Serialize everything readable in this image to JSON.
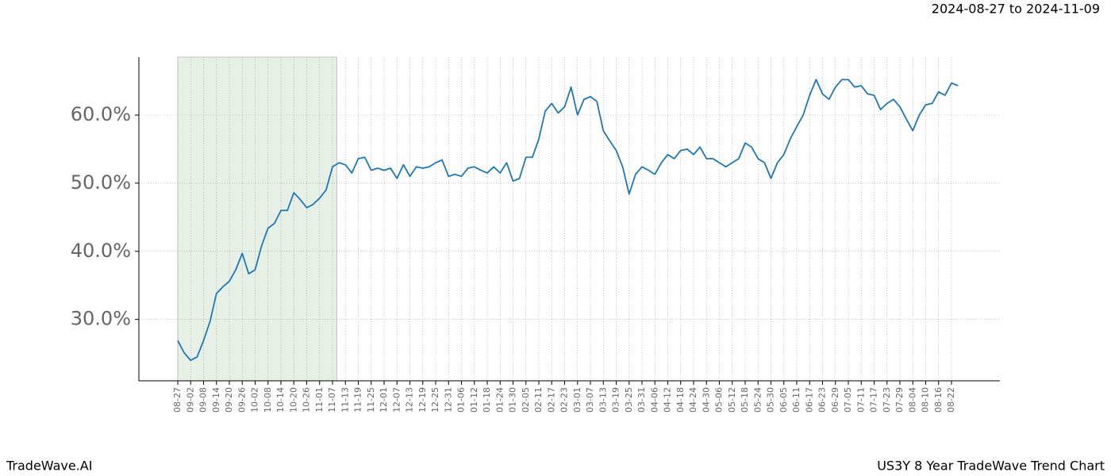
{
  "chart_data": {
    "type": "line",
    "title": "2024-08-27 to 2024-11-09",
    "footer_left": "TradeWave.AI",
    "footer_right": "US3Y 8 Year TradeWave Trend Chart",
    "categories": [
      "08-27",
      null,
      "09-02",
      null,
      "09-08",
      null,
      "09-14",
      null,
      "09-20",
      null,
      "09-26",
      null,
      "10-02",
      null,
      "10-08",
      null,
      "10-14",
      null,
      "10-20",
      null,
      "10-26",
      null,
      "11-01",
      null,
      "11-07",
      null,
      "11-13",
      null,
      "11-19",
      null,
      "11-25",
      null,
      "12-01",
      null,
      "12-07",
      null,
      "12-13",
      null,
      "12-19",
      null,
      "12-25",
      null,
      "12-31",
      null,
      "01-06",
      null,
      "01-12",
      null,
      "01-18",
      null,
      "01-24",
      null,
      "01-30",
      null,
      "02-05",
      null,
      "02-11",
      null,
      "02-17",
      null,
      "02-23",
      null,
      "03-01",
      null,
      "03-07",
      null,
      "03-13",
      null,
      "03-19",
      null,
      "03-25",
      null,
      "03-31",
      null,
      "04-06",
      null,
      "04-12",
      null,
      "04-18",
      null,
      "04-24",
      null,
      "04-30",
      null,
      "05-06",
      null,
      "05-12",
      null,
      "05-18",
      null,
      "05-24",
      null,
      "05-30",
      null,
      "06-05",
      null,
      "06-11",
      null,
      "06-17",
      null,
      "06-23",
      null,
      "06-29",
      null,
      "07-05",
      null,
      "07-11",
      null,
      "07-17",
      null,
      "07-23",
      null,
      "07-29",
      null,
      "08-04",
      null,
      "08-10",
      null,
      "08-16",
      null,
      "08-22",
      null
    ],
    "values": [
      26.9,
      25.1,
      24.0,
      24.5,
      26.9,
      29.7,
      33.8,
      34.8,
      35.6,
      37.3,
      39.7,
      36.7,
      37.3,
      40.8,
      43.4,
      44.1,
      46.0,
      46.0,
      48.6,
      47.6,
      46.4,
      46.9,
      47.8,
      49.0,
      52.4,
      53.0,
      52.7,
      51.5,
      53.6,
      53.8,
      51.9,
      52.2,
      51.9,
      52.2,
      50.7,
      52.7,
      51.0,
      52.4,
      52.2,
      52.4,
      53.0,
      53.4,
      51.0,
      51.3,
      51.0,
      52.2,
      52.4,
      51.9,
      51.5,
      52.4,
      51.5,
      53.0,
      50.3,
      50.7,
      53.8,
      53.8,
      56.5,
      60.6,
      61.7,
      60.3,
      61.2,
      64.1,
      60.0,
      62.3,
      62.7,
      62.0,
      57.7,
      56.2,
      54.8,
      52.4,
      48.4,
      51.3,
      52.4,
      51.9,
      51.3,
      53.0,
      54.2,
      53.6,
      54.8,
      55.0,
      54.2,
      55.3,
      53.6,
      53.6,
      53.0,
      52.4,
      53.0,
      53.6,
      55.9,
      55.3,
      53.6,
      53.0,
      50.7,
      53.0,
      54.2,
      56.5,
      58.3,
      60.0,
      62.9,
      65.2,
      63.1,
      62.3,
      64.1,
      65.2,
      65.2,
      64.1,
      64.3,
      63.1,
      62.9,
      60.8,
      61.7,
      62.3,
      61.2,
      59.4,
      57.7,
      60.0,
      61.5,
      61.7,
      63.4,
      62.9,
      64.7,
      64.3
    ],
    "color": "#1f77b4",
    "shade_color": "#e6f0e6",
    "ylim": [
      21.0,
      68.5
    ],
    "yticks": [
      {
        "value": 30,
        "label": "30.0%"
      },
      {
        "value": 40,
        "label": "40.0%"
      },
      {
        "value": 50,
        "label": "50.0%"
      },
      {
        "value": 60,
        "label": "60.0%"
      }
    ],
    "grid": true
  }
}
